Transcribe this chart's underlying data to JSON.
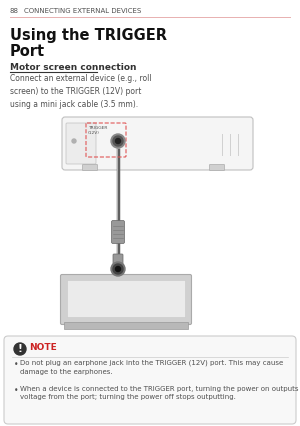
{
  "bg_color": "#ffffff",
  "page_num": "88",
  "page_header": "CONNECTING EXTERNAL DEVICES",
  "title_line1": "Using the TRIGGER",
  "title_line2": "Port",
  "section_title": "Motor screen connection",
  "body_text": "Connect an external device (e.g., roll\nscreen) to the TRIGGER (12V) port\nusing a mini jack cable (3.5 mm).",
  "note_title": "NOTE",
  "note_bullet1": "Do not plug an earphone jack into the TRIGGER (12V) port. This may cause\ndamage to the earphones.",
  "note_bullet2": "When a device is connected to the TRIGGER port, turning the power on outputs\nvoltage from the port; turning the power off stops outputting.",
  "trigger_label": "TRIGGER\n(12V)",
  "header_line_color": "#e8b0b0",
  "note_title_color": "#cc2222",
  "text_color": "#505050",
  "proj_body_color": "#f5f5f5",
  "proj_edge_color": "#c0c0c0",
  "cable_color": "#909090",
  "jack_dark": "#444444",
  "jack_mid": "#666666",
  "jack_light": "#aaaaaa",
  "screen_frame_color": "#d0d0d0",
  "screen_surface_color": "#ebebeb",
  "screen_base_color": "#b8b8b8",
  "red_dashed": "#e05555",
  "note_box_bg": "#f8f8f8",
  "note_box_edge": "#cccccc",
  "icon_color": "#333333"
}
